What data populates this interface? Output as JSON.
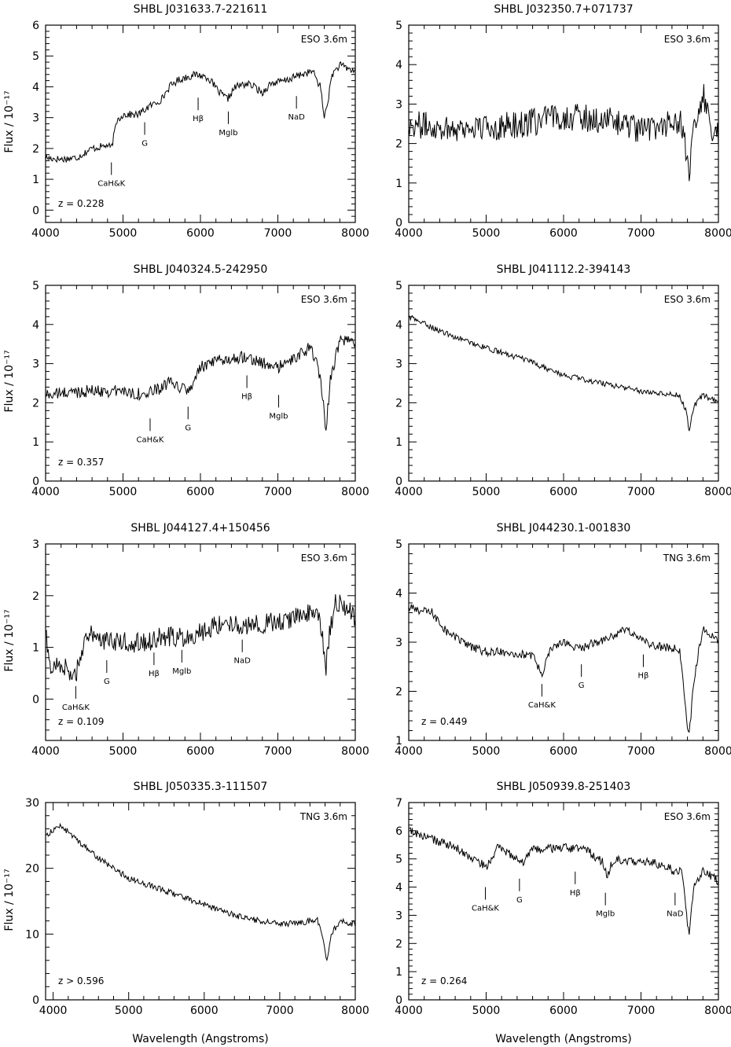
{
  "figure": {
    "x_label": "Wavelength (Angstroms)",
    "y_label": "Flux / 10⁻¹⁷"
  },
  "chart_data": [
    {
      "type": "line",
      "title": "SHBL J031633.7-221611",
      "telescope": "ESO 3.6m",
      "redshift_label": "z = 0.228",
      "xlim": [
        4000,
        8000
      ],
      "ylim": [
        -0.4,
        6
      ],
      "xticks": [
        4000,
        5000,
        6000,
        7000,
        8000
      ],
      "yticks": [
        0,
        1,
        2,
        3,
        4,
        5,
        6
      ],
      "spectrum": [
        [
          4000,
          1.7
        ],
        [
          4200,
          1.65
        ],
        [
          4400,
          1.7
        ],
        [
          4600,
          2.0
        ],
        [
          4800,
          2.1
        ],
        [
          4850,
          2.0
        ],
        [
          4920,
          2.9
        ],
        [
          5000,
          3.1
        ],
        [
          5200,
          3.1
        ],
        [
          5300,
          3.3
        ],
        [
          5500,
          3.6
        ],
        [
          5600,
          4.0
        ],
        [
          5700,
          4.2
        ],
        [
          5800,
          4.3
        ],
        [
          5950,
          4.4
        ],
        [
          6100,
          4.3
        ],
        [
          6250,
          3.8
        ],
        [
          6350,
          3.6
        ],
        [
          6450,
          4.0
        ],
        [
          6600,
          4.1
        ],
        [
          6700,
          4.0
        ],
        [
          6800,
          3.8
        ],
        [
          6900,
          4.1
        ],
        [
          7100,
          4.2
        ],
        [
          7300,
          4.4
        ],
        [
          7450,
          4.5
        ],
        [
          7550,
          4.0
        ],
        [
          7600,
          3.0
        ],
        [
          7650,
          3.6
        ],
        [
          7700,
          4.4
        ],
        [
          7800,
          4.7
        ],
        [
          7900,
          4.6
        ],
        [
          8000,
          4.5
        ]
      ],
      "noise": 0.12,
      "features": [
        {
          "label": "CaH&K",
          "x": 4850,
          "y": 1.55
        },
        {
          "label": "G",
          "x": 5280,
          "y": 2.85
        },
        {
          "label": "Hβ",
          "x": 5970,
          "y": 3.65
        },
        {
          "label": "Mglb",
          "x": 6360,
          "y": 3.2
        },
        {
          "label": "NaD",
          "x": 7240,
          "y": 3.7
        }
      ]
    },
    {
      "type": "line",
      "title": "SHBL J032350.7+071737",
      "telescope": "ESO 3.6m",
      "redshift_label": "",
      "xlim": [
        4000,
        8000
      ],
      "ylim": [
        0,
        5
      ],
      "xticks": [
        4000,
        5000,
        6000,
        7000,
        8000
      ],
      "yticks": [
        0,
        1,
        2,
        3,
        4,
        5
      ],
      "spectrum": [
        [
          4000,
          2.5
        ],
        [
          4500,
          2.4
        ],
        [
          5000,
          2.4
        ],
        [
          5500,
          2.5
        ],
        [
          6000,
          2.7
        ],
        [
          6500,
          2.6
        ],
        [
          6800,
          2.5
        ],
        [
          7000,
          2.3
        ],
        [
          7300,
          2.5
        ],
        [
          7500,
          2.6
        ],
        [
          7580,
          1.8
        ],
        [
          7620,
          1.0
        ],
        [
          7650,
          2.0
        ],
        [
          7750,
          2.8
        ],
        [
          7800,
          3.3
        ],
        [
          7900,
          2.4
        ],
        [
          8000,
          2.2
        ]
      ],
      "noise": 0.35,
      "features": []
    },
    {
      "type": "line",
      "title": "SHBL J040324.5-242950",
      "telescope": "ESO 3.6m",
      "redshift_label": "z = 0.357",
      "xlim": [
        4000,
        8000
      ],
      "ylim": [
        0,
        5
      ],
      "xticks": [
        4000,
        5000,
        6000,
        7000,
        8000
      ],
      "yticks": [
        0,
        1,
        2,
        3,
        4,
        5
      ],
      "spectrum": [
        [
          4000,
          2.2
        ],
        [
          4500,
          2.3
        ],
        [
          5000,
          2.3
        ],
        [
          5300,
          2.2
        ],
        [
          5600,
          2.5
        ],
        [
          5850,
          2.3
        ],
        [
          6000,
          2.9
        ],
        [
          6300,
          3.1
        ],
        [
          6600,
          3.2
        ],
        [
          6800,
          3.0
        ],
        [
          7000,
          2.9
        ],
        [
          7200,
          3.1
        ],
        [
          7400,
          3.4
        ],
        [
          7500,
          3.1
        ],
        [
          7580,
          2.2
        ],
        [
          7620,
          1.3
        ],
        [
          7680,
          2.6
        ],
        [
          7800,
          3.6
        ],
        [
          8000,
          3.5
        ]
      ],
      "noise": 0.16,
      "features": [
        {
          "label": "CaH&K",
          "x": 5350,
          "y": 1.6
        },
        {
          "label": "G",
          "x": 5840,
          "y": 1.9
        },
        {
          "label": "Hβ",
          "x": 6600,
          "y": 2.7
        },
        {
          "label": "Mglb",
          "x": 7010,
          "y": 2.2
        }
      ]
    },
    {
      "type": "line",
      "title": "SHBL J041112.2-394143",
      "telescope": "ESO 3.6m",
      "redshift_label": "",
      "xlim": [
        4000,
        8000
      ],
      "ylim": [
        0,
        5
      ],
      "xticks": [
        4000,
        5000,
        6000,
        7000,
        8000
      ],
      "yticks": [
        0,
        1,
        2,
        3,
        4,
        5
      ],
      "spectrum": [
        [
          4000,
          4.2
        ],
        [
          4500,
          3.75
        ],
        [
          5000,
          3.4
        ],
        [
          5500,
          3.1
        ],
        [
          6000,
          2.7
        ],
        [
          6500,
          2.5
        ],
        [
          7000,
          2.3
        ],
        [
          7500,
          2.2
        ],
        [
          7580,
          1.8
        ],
        [
          7620,
          1.3
        ],
        [
          7680,
          1.9
        ],
        [
          7800,
          2.2
        ],
        [
          8000,
          2.0
        ]
      ],
      "noise": 0.07,
      "features": []
    },
    {
      "type": "line",
      "title": "SHBL J044127.4+150456",
      "telescope": "ESO 3.6m",
      "redshift_label": "z = 0.109",
      "xlim": [
        4000,
        8000
      ],
      "ylim": [
        -0.8,
        3
      ],
      "xticks": [
        4000,
        5000,
        6000,
        7000,
        8000
      ],
      "yticks": [
        0,
        1,
        2,
        3
      ],
      "spectrum": [
        [
          4000,
          1.3
        ],
        [
          4050,
          0.6
        ],
        [
          4200,
          0.7
        ],
        [
          4380,
          0.4
        ],
        [
          4450,
          0.9
        ],
        [
          4600,
          1.3
        ],
        [
          4800,
          1.1
        ],
        [
          5000,
          1.1
        ],
        [
          5300,
          1.1
        ],
        [
          5500,
          1.2
        ],
        [
          5800,
          1.2
        ],
        [
          6000,
          1.3
        ],
        [
          6300,
          1.5
        ],
        [
          6600,
          1.4
        ],
        [
          7000,
          1.5
        ],
        [
          7300,
          1.6
        ],
        [
          7500,
          1.7
        ],
        [
          7580,
          1.2
        ],
        [
          7620,
          0.6
        ],
        [
          7680,
          1.4
        ],
        [
          7750,
          1.9
        ],
        [
          8000,
          1.6
        ]
      ],
      "noise": 0.2,
      "features": [
        {
          "label": "CaH&K",
          "x": 4390,
          "y": 0.25
        },
        {
          "label": "G",
          "x": 4790,
          "y": 0.75
        },
        {
          "label": "Hβ",
          "x": 5400,
          "y": 0.9
        },
        {
          "label": "Mglb",
          "x": 5760,
          "y": 0.95
        },
        {
          "label": "NaD",
          "x": 6540,
          "y": 1.15
        }
      ]
    },
    {
      "type": "line",
      "title": "SHBL J044230.1-001830",
      "telescope": "TNG 3.6m",
      "redshift_label": "z = 0.449",
      "xlim": [
        4000,
        8000
      ],
      "ylim": [
        1,
        5
      ],
      "xticks": [
        4000,
        5000,
        6000,
        7000,
        8000
      ],
      "yticks": [
        1,
        2,
        3,
        4,
        5
      ],
      "spectrum": [
        [
          4000,
          3.7
        ],
        [
          4300,
          3.6
        ],
        [
          4500,
          3.2
        ],
        [
          4800,
          2.9
        ],
        [
          5000,
          2.8
        ],
        [
          5300,
          2.8
        ],
        [
          5600,
          2.7
        ],
        [
          5730,
          2.35
        ],
        [
          5800,
          2.8
        ],
        [
          6000,
          3.0
        ],
        [
          6200,
          2.85
        ],
        [
          6400,
          3.0
        ],
        [
          6600,
          3.1
        ],
        [
          6800,
          3.25
        ],
        [
          6950,
          3.15
        ],
        [
          7100,
          2.95
        ],
        [
          7300,
          2.9
        ],
        [
          7500,
          2.85
        ],
        [
          7580,
          1.6
        ],
        [
          7620,
          1.05
        ],
        [
          7680,
          2.2
        ],
        [
          7800,
          3.3
        ],
        [
          8000,
          3.0
        ]
      ],
      "noise": 0.09,
      "features": [
        {
          "label": "CaH&K",
          "x": 5720,
          "y": 2.15
        },
        {
          "label": "G",
          "x": 6230,
          "y": 2.55
        },
        {
          "label": "Hβ",
          "x": 7030,
          "y": 2.75
        }
      ]
    },
    {
      "type": "line",
      "title": "SHBL J050335.3-111507",
      "telescope": "TNG 3.6m",
      "redshift_label": "z > 0.596",
      "xlim": [
        3900,
        8000
      ],
      "ylim": [
        0,
        30
      ],
      "xticks": [
        4000,
        5000,
        6000,
        7000,
        8000
      ],
      "yticks": [
        0,
        10,
        20,
        30
      ],
      "spectrum": [
        [
          3900,
          25
        ],
        [
          4100,
          26.5
        ],
        [
          4300,
          24.5
        ],
        [
          4600,
          21.5
        ],
        [
          5000,
          18.5
        ],
        [
          5500,
          16.5
        ],
        [
          6000,
          14.5
        ],
        [
          6500,
          12.5
        ],
        [
          7000,
          11.5
        ],
        [
          7300,
          11.8
        ],
        [
          7500,
          12.2
        ],
        [
          7580,
          9
        ],
        [
          7620,
          5.5
        ],
        [
          7680,
          10
        ],
        [
          7800,
          12
        ],
        [
          8000,
          11.5
        ]
      ],
      "noise": 0.45,
      "features": []
    },
    {
      "type": "line",
      "title": "SHBL J050939.8-251403",
      "telescope": "ESO 3.6m",
      "redshift_label": "z = 0.264",
      "xlim": [
        4000,
        8000
      ],
      "ylim": [
        0,
        7
      ],
      "xticks": [
        4000,
        5000,
        6000,
        7000,
        8000
      ],
      "yticks": [
        0,
        1,
        2,
        3,
        4,
        5,
        6,
        7
      ],
      "spectrum": [
        [
          4000,
          6.0
        ],
        [
          4300,
          5.7
        ],
        [
          4600,
          5.4
        ],
        [
          4900,
          4.9
        ],
        [
          5000,
          4.7
        ],
        [
          5150,
          5.4
        ],
        [
          5350,
          5.1
        ],
        [
          5450,
          4.8
        ],
        [
          5600,
          5.3
        ],
        [
          6000,
          5.4
        ],
        [
          6300,
          5.3
        ],
        [
          6500,
          4.9
        ],
        [
          6560,
          4.4
        ],
        [
          6650,
          5.0
        ],
        [
          7000,
          4.9
        ],
        [
          7300,
          4.8
        ],
        [
          7450,
          4.5
        ],
        [
          7520,
          4.7
        ],
        [
          7580,
          3.3
        ],
        [
          7620,
          2.2
        ],
        [
          7680,
          4.0
        ],
        [
          7800,
          4.6
        ],
        [
          8000,
          4.2
        ]
      ],
      "noise": 0.16,
      "features": [
        {
          "label": "CaH&K",
          "x": 4990,
          "y": 4.0
        },
        {
          "label": "G",
          "x": 5430,
          "y": 4.3
        },
        {
          "label": "Hβ",
          "x": 6150,
          "y": 4.55
        },
        {
          "label": "Mglb",
          "x": 6540,
          "y": 3.8
        },
        {
          "label": "NaD",
          "x": 7440,
          "y": 3.8
        }
      ]
    }
  ]
}
